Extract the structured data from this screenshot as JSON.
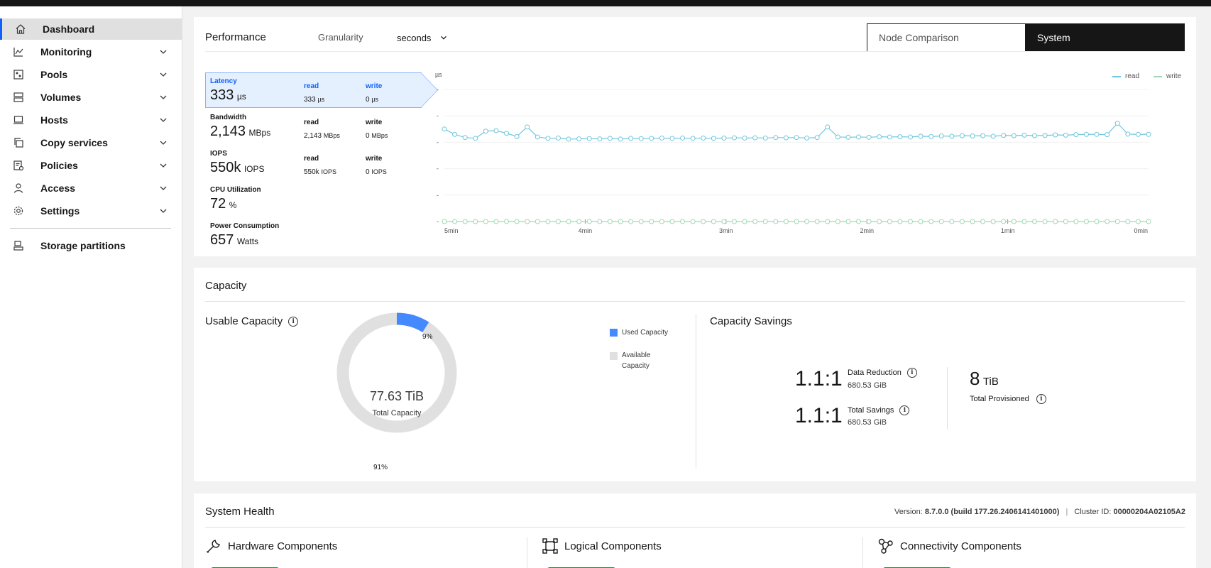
{
  "sidebar": {
    "items": [
      {
        "label": "Dashboard",
        "icon": "home-icon",
        "active": true,
        "expandable": false
      },
      {
        "label": "Monitoring",
        "icon": "monitoring-icon",
        "expandable": true
      },
      {
        "label": "Pools",
        "icon": "pools-icon",
        "expandable": true
      },
      {
        "label": "Volumes",
        "icon": "volumes-icon",
        "expandable": true
      },
      {
        "label": "Hosts",
        "icon": "hosts-icon",
        "expandable": true
      },
      {
        "label": "Copy services",
        "icon": "copy-services-icon",
        "expandable": true
      },
      {
        "label": "Policies",
        "icon": "policies-icon",
        "expandable": true
      },
      {
        "label": "Access",
        "icon": "access-icon",
        "expandable": true
      },
      {
        "label": "Settings",
        "icon": "settings-icon",
        "expandable": true
      }
    ],
    "bottom_item": {
      "label": "Storage partitions",
      "icon": "storage-partitions-icon"
    }
  },
  "performance": {
    "title": "Performance",
    "granularity_label": "Granularity",
    "granularity_value": "seconds",
    "toggle": {
      "node_comparison": "Node Comparison",
      "system": "System",
      "selected": "System"
    },
    "metrics": [
      {
        "name": "Latency",
        "value": "333",
        "unit": "µs",
        "read_label": "read",
        "read_value": "333",
        "read_unit": "µs",
        "write_label": "write",
        "write_value": "0",
        "write_unit": "µs",
        "selected": true
      },
      {
        "name": "Bandwidth",
        "value": "2,143",
        "unit": "MBps",
        "read_label": "read",
        "read_value": "2,143",
        "read_unit": "MBps",
        "write_label": "write",
        "write_value": "0",
        "write_unit": "MBps"
      },
      {
        "name": "IOPS",
        "value": "550k",
        "unit": "IOPS",
        "read_label": "read",
        "read_value": "550k",
        "read_unit": "IOPS",
        "write_label": "write",
        "write_value": "0",
        "write_unit": "IOPS"
      },
      {
        "name": "CPU Utilization",
        "value": "72",
        "unit": "%"
      },
      {
        "name": "Power Consumption",
        "value": "657",
        "unit": "Watts"
      }
    ]
  },
  "chart_data": {
    "type": "line",
    "ylabel": "µs",
    "ylim": [
      0,
      500
    ],
    "yticks": [
      0,
      100,
      200,
      300,
      400,
      500
    ],
    "xticks": [
      "5min",
      "4min",
      "3min",
      "2min",
      "1min",
      "0min"
    ],
    "grid": true,
    "legend_position": "top-right",
    "colors": {
      "read": "#6ec6dc",
      "write": "#9fd9b3"
    },
    "series": [
      {
        "name": "read",
        "values": [
          350,
          330,
          318,
          315,
          342,
          344,
          334,
          322,
          358,
          320,
          315,
          316,
          312,
          313,
          314,
          313,
          315,
          312,
          315,
          314,
          315,
          316,
          315,
          316,
          315,
          316,
          315,
          316,
          317,
          316,
          317,
          316,
          318,
          317,
          318,
          316,
          318,
          358,
          320,
          319,
          320,
          319,
          321,
          320,
          321,
          320,
          323,
          322,
          324,
          323,
          325,
          324,
          325,
          323,
          326,
          325,
          327,
          325,
          326,
          328,
          327,
          329,
          330,
          330,
          329,
          372,
          331,
          330,
          330
        ]
      },
      {
        "name": "write",
        "values": [
          0,
          0,
          0,
          0,
          0,
          0,
          0,
          0,
          0,
          0,
          0,
          0,
          0,
          0,
          0,
          0,
          0,
          0,
          0,
          0,
          0,
          0,
          0,
          0,
          0,
          0,
          0,
          0,
          0,
          0,
          0,
          0,
          0,
          0,
          0,
          0,
          0,
          0,
          0,
          0,
          0,
          0,
          0,
          0,
          0,
          0,
          0,
          0,
          0,
          0,
          0,
          0,
          0,
          0,
          0,
          0,
          0,
          0,
          0,
          0,
          0,
          0,
          0,
          0,
          0,
          0,
          0,
          0,
          0
        ]
      }
    ]
  },
  "capacity": {
    "title": "Capacity",
    "usable_title": "Usable Capacity",
    "donut": {
      "total_value": "77.63 TiB",
      "total_label": "Total Capacity",
      "used_pct_label": "9%",
      "available_pct_label": "91%",
      "used_fraction": 0.09,
      "used_color": "#4589ff",
      "available_color": "#e0e0e0"
    },
    "legend": {
      "used": "Used Capacity",
      "available": "Available Capacity"
    },
    "savings_title": "Capacity Savings",
    "data_reduction": {
      "ratio": "1.1:1",
      "label": "Data Reduction",
      "value": "680.53 GiB"
    },
    "total_savings": {
      "ratio": "1.1:1",
      "label": "Total Savings",
      "value": "680.53 GiB"
    },
    "provisioned": {
      "value": "8",
      "unit": "TiB",
      "label": "Total Provisioned"
    }
  },
  "health": {
    "title": "System Health",
    "version_label": "Version:",
    "version_value": "8.7.0.0 (build 177.26.2406141401000)",
    "cluster_label": "Cluster ID:",
    "cluster_value": "00000204A02105A2",
    "components": [
      {
        "label": "Hardware Components",
        "icon": "wrench-icon"
      },
      {
        "label": "Logical Components",
        "icon": "logical-components-icon"
      },
      {
        "label": "Connectivity Components",
        "icon": "connectivity-icon"
      }
    ]
  }
}
